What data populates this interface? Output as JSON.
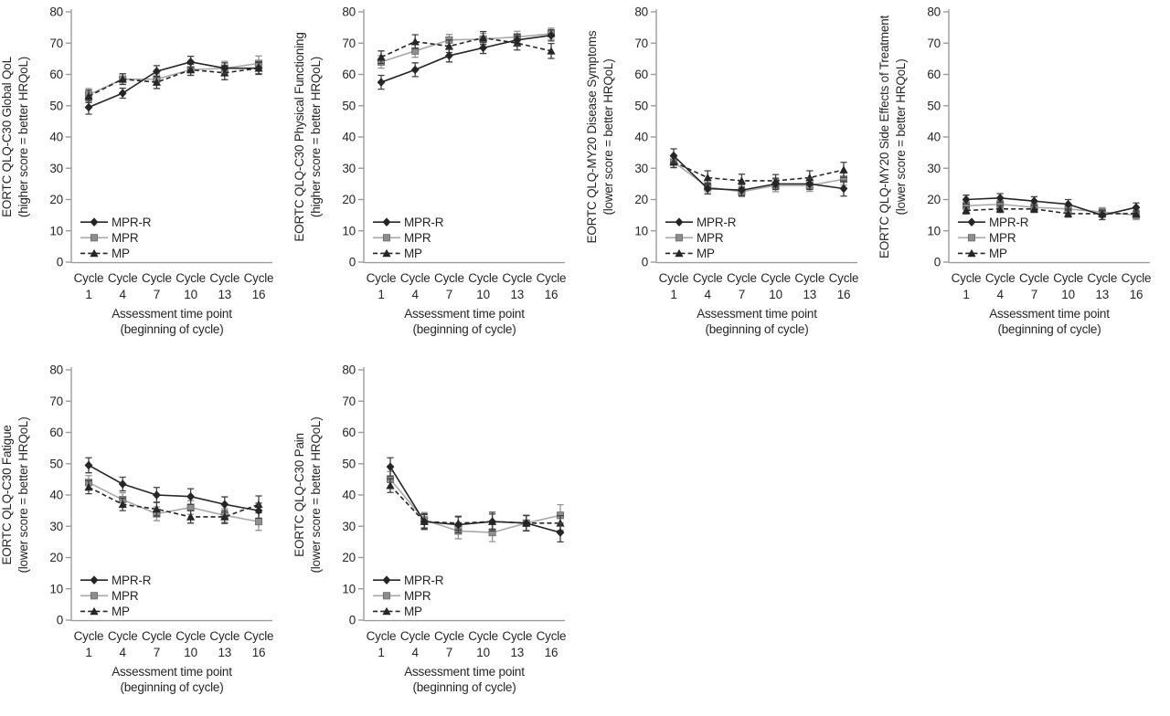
{
  "figure": {
    "x_tick_word": "Cycle",
    "x_tick_numbers": [
      "1",
      "4",
      "7",
      "10",
      "13",
      "16"
    ],
    "y_tick_labels": [
      "0",
      "10",
      "20",
      "30",
      "40",
      "50",
      "60",
      "70",
      "80"
    ],
    "x_title_line1": "Assessment time point",
    "x_title_line2": "(beginning of cycle)",
    "legend_labels": [
      "MPR-R",
      "MPR",
      "MP"
    ],
    "colors": {
      "black_series": "#262626",
      "gray_line": "#a9a9a9",
      "gray_marker_fill": "#8e8e8e",
      "gray_marker_stroke": "#707070",
      "black_error": "#404040",
      "gray_error": "#949494",
      "axis": "#9c9c9c",
      "text": "#262626"
    }
  },
  "chart_data": [
    {
      "type": "line",
      "ylabel": "EORTC QLQ-C30 Global QoL",
      "ylabel2": "(higher score = better HRQoL)",
      "xlabel": "Assessment time point (beginning of cycle)",
      "categories": [
        "Cycle 1",
        "Cycle 4",
        "Cycle 7",
        "Cycle 10",
        "Cycle 13",
        "Cycle 16"
      ],
      "ylim": [
        0,
        80
      ],
      "ytick_step": 10,
      "grid": false,
      "legend_position": "inside-lower-left",
      "point_x_offset": 0,
      "series": [
        {
          "name": "MPR-R",
          "marker": "diamond",
          "line": "solid",
          "color": "#262626",
          "values": [
            49.5,
            54,
            61,
            64,
            62,
            62
          ],
          "error": [
            2.2,
            1.6,
            1.8,
            1.8,
            1.7,
            1.8
          ]
        },
        {
          "name": "MPR",
          "marker": "square",
          "line": "solid",
          "color": "#a9a9a9",
          "values": [
            53.5,
            58.5,
            58.5,
            61.5,
            62,
            63.5
          ],
          "error": [
            2.0,
            1.7,
            1.7,
            1.8,
            2.2,
            2.4
          ]
        },
        {
          "name": "MP",
          "marker": "triangle",
          "line": "dashed",
          "color": "#262626",
          "values": [
            53,
            58.5,
            57.5,
            61.5,
            60.5,
            62
          ],
          "error": [
            2.0,
            1.7,
            2.0,
            1.8,
            2.2,
            2.0
          ]
        }
      ]
    },
    {
      "type": "line",
      "ylabel": "EORTC QLQ-C30 Physical Functioning",
      "ylabel2": "(higher score = better HRQoL)",
      "xlabel": "Assessment time point (beginning of cycle)",
      "categories": [
        "Cycle 1",
        "Cycle 4",
        "Cycle 7",
        "Cycle 10",
        "Cycle 13",
        "Cycle 16"
      ],
      "ylim": [
        0,
        80
      ],
      "ytick_step": 10,
      "grid": false,
      "legend_position": "inside-lower-left",
      "point_x_offset": 0,
      "series": [
        {
          "name": "MPR-R",
          "marker": "diamond",
          "line": "solid",
          "color": "#262626",
          "values": [
            57.5,
            61.5,
            66,
            68.5,
            71,
            72.5
          ],
          "error": [
            2.2,
            2.2,
            2.0,
            1.8,
            1.8,
            1.8
          ]
        },
        {
          "name": "MPR",
          "marker": "square",
          "line": "solid",
          "color": "#a9a9a9",
          "values": [
            64,
            67.5,
            71,
            71.3,
            72,
            73
          ],
          "error": [
            2.0,
            2.0,
            1.8,
            1.8,
            1.8,
            1.8
          ]
        },
        {
          "name": "MP",
          "marker": "triangle",
          "line": "dashed",
          "color": "#262626",
          "values": [
            65.5,
            70.5,
            69,
            71.7,
            70,
            67.5
          ],
          "error": [
            2.0,
            2.2,
            2.0,
            2.0,
            2.2,
            2.4
          ]
        }
      ]
    },
    {
      "type": "line",
      "ylabel": "EORTC QLQ-MY20 Disease Symptoms",
      "ylabel2": "(lower score = better HRQoL)",
      "xlabel": "Assessment time point (beginning of cycle)",
      "categories": [
        "Cycle 1",
        "Cycle 4",
        "Cycle 7",
        "Cycle 10",
        "Cycle 13",
        "Cycle 16"
      ],
      "ylim": [
        0,
        80
      ],
      "ytick_step": 10,
      "grid": false,
      "legend_position": "inside-lower-left",
      "point_x_offset": 0,
      "series": [
        {
          "name": "MPR-R",
          "marker": "diamond",
          "line": "solid",
          "color": "#262626",
          "values": [
            34,
            23.5,
            23,
            25,
            25,
            23.5
          ],
          "error": [
            2.2,
            1.7,
            1.8,
            1.8,
            1.8,
            2.4
          ]
        },
        {
          "name": "MPR",
          "marker": "square",
          "line": "solid",
          "color": "#a9a9a9",
          "values": [
            32,
            24,
            22.5,
            24.5,
            24.5,
            26.5
          ],
          "error": [
            1.7,
            1.5,
            1.6,
            2.0,
            1.9,
            1.9
          ]
        },
        {
          "name": "MP",
          "marker": "triangle",
          "line": "dashed",
          "color": "#262626",
          "values": [
            32,
            27,
            26,
            26,
            27,
            29.5
          ],
          "error": [
            1.8,
            2.2,
            2.1,
            2.0,
            2.2,
            2.4
          ]
        }
      ]
    },
    {
      "type": "line",
      "ylabel": "EORTC QLQ-MY20 Side Effects of Treatment",
      "ylabel2": "(lower score = better HRQoL)",
      "xlabel": "Assessment time point (beginning of cycle)",
      "categories": [
        "Cycle 1",
        "Cycle 4",
        "Cycle 7",
        "Cycle 10",
        "Cycle 13",
        "Cycle 16"
      ],
      "ylim": [
        0,
        80
      ],
      "ytick_step": 10,
      "grid": false,
      "legend_position": "inside-lower-left",
      "point_x_offset": 0,
      "series": [
        {
          "name": "MPR-R",
          "marker": "diamond",
          "line": "solid",
          "color": "#262626",
          "values": [
            20,
            20.5,
            19.5,
            18.5,
            15,
            17.5
          ],
          "error": [
            1.4,
            1.4,
            1.4,
            1.5,
            1.4,
            1.4
          ]
        },
        {
          "name": "MPR",
          "marker": "square",
          "line": "solid",
          "color": "#a9a9a9",
          "values": [
            18,
            18.5,
            17.5,
            17,
            16,
            15
          ],
          "error": [
            1.3,
            1.2,
            1.2,
            1.4,
            1.4,
            1.4
          ]
        },
        {
          "name": "MP",
          "marker": "triangle",
          "line": "dashed",
          "color": "#262626",
          "values": [
            16.5,
            17,
            17,
            15.5,
            15.5,
            15.5
          ],
          "error": [
            1.1,
            1.1,
            1.1,
            1.1,
            1.1,
            1.1
          ]
        }
      ]
    },
    {
      "type": "line",
      "ylabel": "EORTC QLQ-C30 Fatigue",
      "ylabel2": "(lower score = better HRQoL)",
      "xlabel": "Assessment time point (beginning of cycle)",
      "categories": [
        "Cycle 1",
        "Cycle 4",
        "Cycle 7",
        "Cycle 10",
        "Cycle 13",
        "Cycle 16"
      ],
      "ylim": [
        0,
        80
      ],
      "ytick_step": 10,
      "grid": false,
      "legend_position": "inside-lower-left",
      "point_x_offset": 0,
      "series": [
        {
          "name": "MPR-R",
          "marker": "diamond",
          "line": "solid",
          "color": "#262626",
          "values": [
            49.5,
            43.5,
            40,
            39.5,
            37,
            35
          ],
          "error": [
            2.4,
            2.2,
            2.4,
            2.5,
            2.4,
            2.4
          ]
        },
        {
          "name": "MPR",
          "marker": "square",
          "line": "solid",
          "color": "#a9a9a9",
          "values": [
            44,
            38.5,
            34,
            36,
            33.5,
            31.5
          ],
          "error": [
            2.2,
            2.2,
            2.2,
            2.2,
            2.2,
            2.8
          ]
        },
        {
          "name": "MP",
          "marker": "triangle",
          "line": "dashed",
          "color": "#262626",
          "values": [
            42.5,
            37,
            35.5,
            33,
            33,
            37
          ],
          "error": [
            2.1,
            2.0,
            2.2,
            2.0,
            2.1,
            2.7
          ]
        }
      ]
    },
    {
      "type": "line",
      "ylabel": "EORTC QLQ-C30 Pain",
      "ylabel2": "(lower score = better HRQoL)",
      "xlabel": "Assessment time point (beginning of cycle)",
      "categories": [
        "Cycle 1",
        "Cycle 4",
        "Cycle 7",
        "Cycle 10",
        "Cycle 13",
        "Cycle 16"
      ],
      "ylim": [
        0,
        80
      ],
      "ytick_step": 10,
      "grid": false,
      "legend_position": "inside-lower-left",
      "point_x_offset": 10,
      "series": [
        {
          "name": "MPR-R",
          "marker": "diamond",
          "line": "solid",
          "color": "#262626",
          "values": [
            49,
            31.5,
            30.5,
            31.5,
            31,
            28
          ],
          "error": [
            2.9,
            2.5,
            2.5,
            3.0,
            2.5,
            3.0
          ]
        },
        {
          "name": "MPR",
          "marker": "square",
          "line": "solid",
          "color": "#a9a9a9",
          "values": [
            45,
            32,
            28.5,
            28,
            31,
            33.5
          ],
          "error": [
            2.5,
            2.4,
            2.5,
            2.9,
            2.5,
            3.4
          ]
        },
        {
          "name": "MP",
          "marker": "triangle",
          "line": "dashed",
          "color": "#262626",
          "values": [
            43,
            31.5,
            31,
            31.5,
            31,
            31
          ],
          "error": [
            2.2,
            2.2,
            2.2,
            2.4,
            2.4,
            2.4
          ]
        }
      ]
    }
  ]
}
